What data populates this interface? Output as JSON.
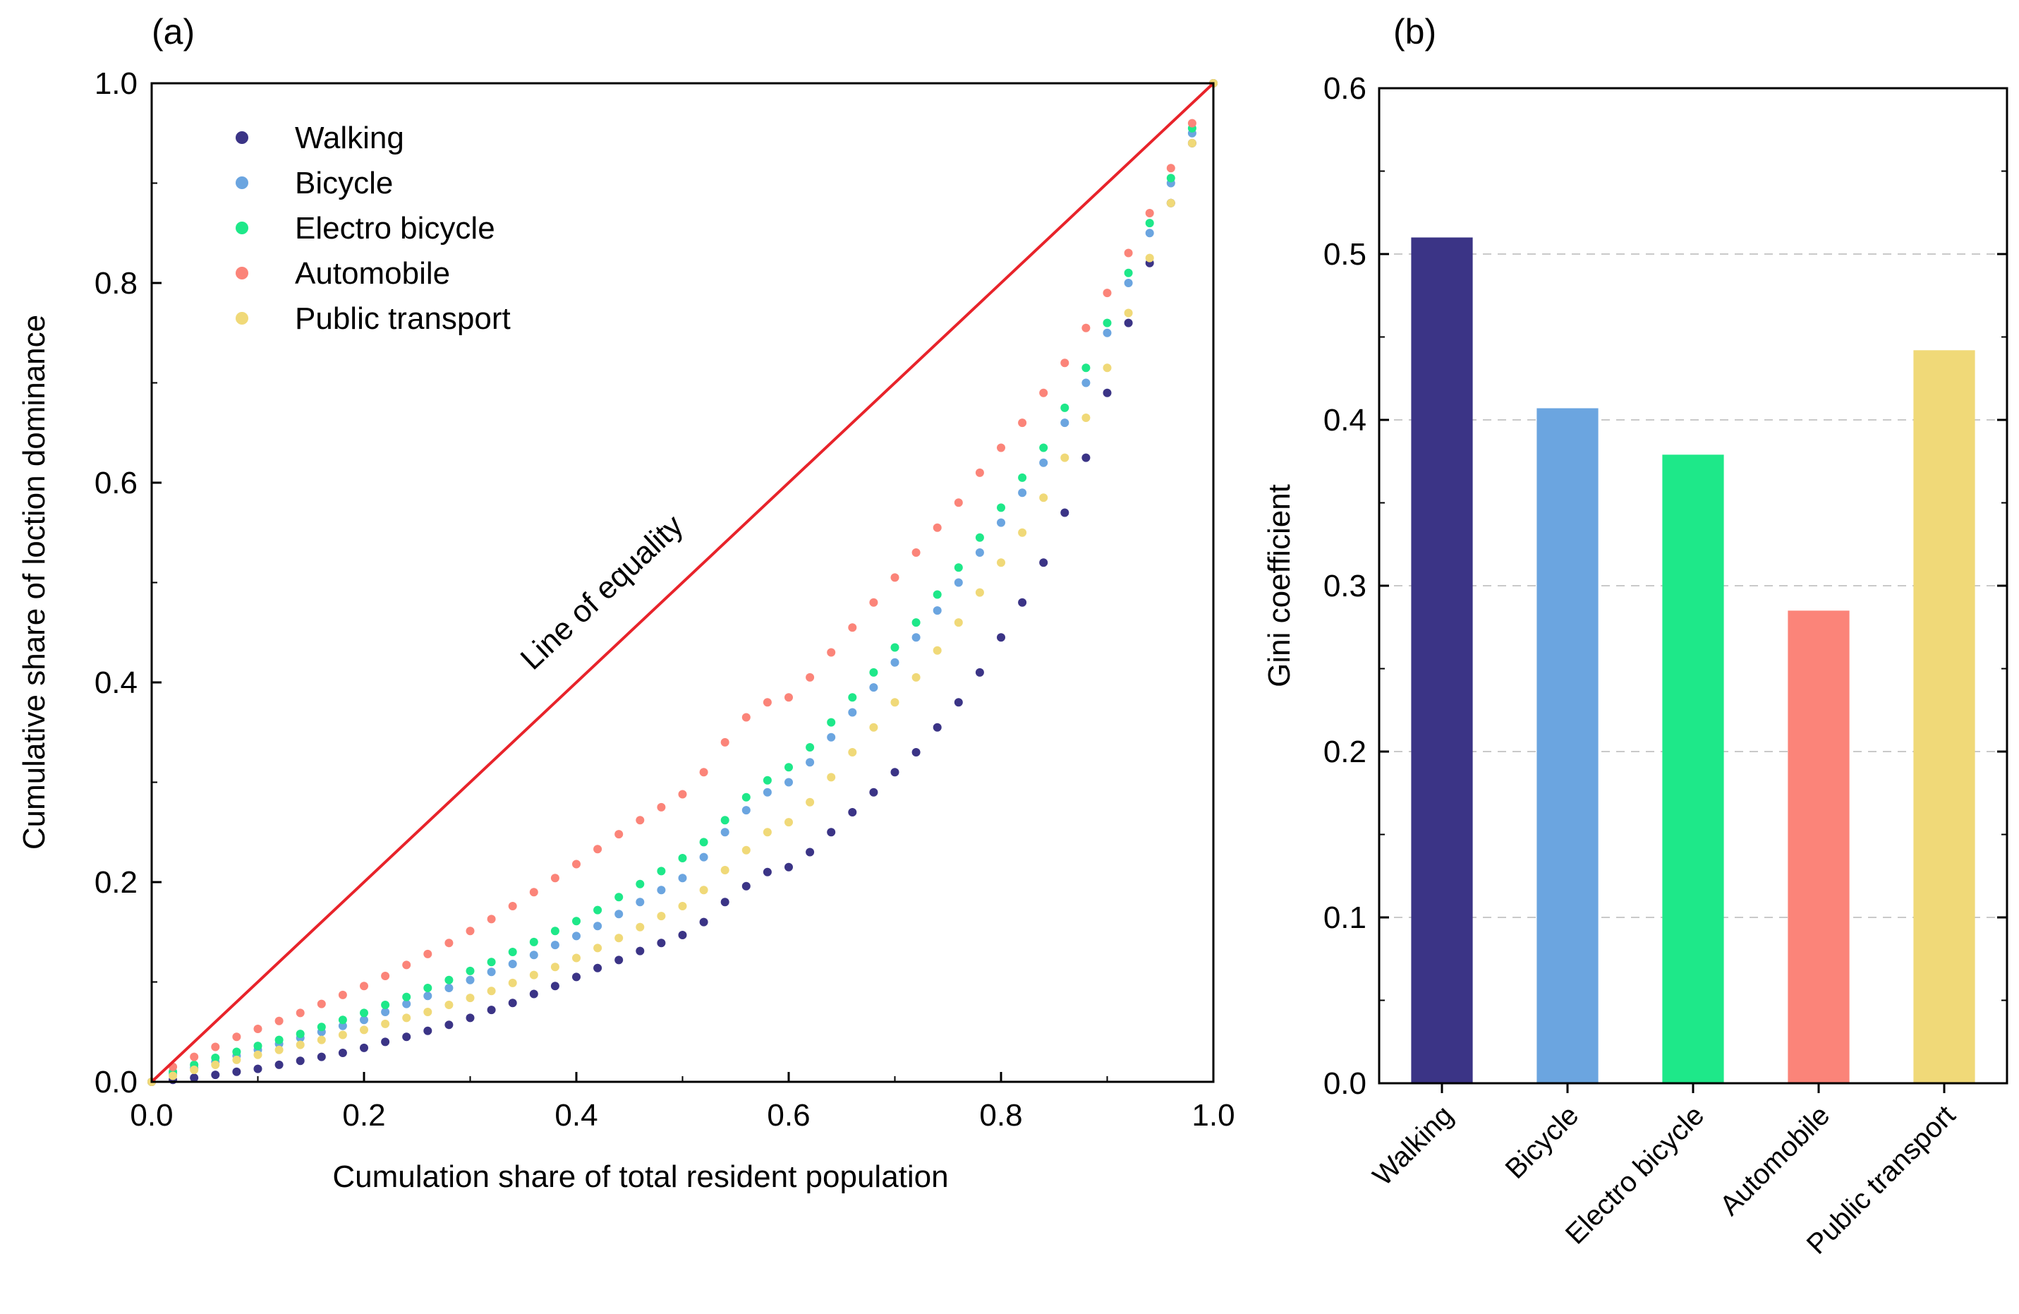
{
  "colors": {
    "walking": "#3b3486",
    "bicycle": "#6ba5e0",
    "electro_bicycle": "#1ee889",
    "automobile": "#fb8479",
    "public_transport": "#f0d978",
    "equality_line": "#e8232a"
  },
  "chart_data": [
    {
      "panel": "(a)",
      "type": "scatter",
      "title": "",
      "xlabel": "Cumulation share of total resident population",
      "ylabel": "Cumulative share of loction dominance",
      "xlim": [
        0,
        1
      ],
      "ylim": [
        0,
        1
      ],
      "xticks": [
        "0.0",
        "0.2",
        "0.4",
        "0.6",
        "0.8",
        "1.0"
      ],
      "yticks": [
        "0.0",
        "0.2",
        "0.4",
        "0.6",
        "0.8",
        "1.0"
      ],
      "legend_position": "top-left",
      "annotation": "Line of equality",
      "equality_line": [
        [
          0,
          0
        ],
        [
          1,
          1
        ]
      ],
      "series": [
        {
          "name": "Walking",
          "color_key": "walking",
          "x": [
            0,
            0.02,
            0.04,
            0.06,
            0.08,
            0.1,
            0.12,
            0.14,
            0.16,
            0.18,
            0.2,
            0.22,
            0.24,
            0.26,
            0.28,
            0.3,
            0.32,
            0.34,
            0.36,
            0.38,
            0.4,
            0.42,
            0.44,
            0.46,
            0.48,
            0.5,
            0.52,
            0.54,
            0.56,
            0.58,
            0.6,
            0.62,
            0.64,
            0.66,
            0.68,
            0.7,
            0.72,
            0.74,
            0.76,
            0.78,
            0.8,
            0.82,
            0.84,
            0.86,
            0.88,
            0.9,
            0.92,
            0.94,
            0.96,
            0.98,
            1.0
          ],
          "y": [
            0.0,
            0.002,
            0.004,
            0.007,
            0.01,
            0.013,
            0.017,
            0.021,
            0.025,
            0.029,
            0.034,
            0.04,
            0.045,
            0.051,
            0.057,
            0.064,
            0.072,
            0.079,
            0.088,
            0.096,
            0.105,
            0.114,
            0.122,
            0.131,
            0.139,
            0.147,
            0.16,
            0.18,
            0.196,
            0.21,
            0.215,
            0.23,
            0.25,
            0.27,
            0.29,
            0.31,
            0.33,
            0.355,
            0.38,
            0.41,
            0.445,
            0.48,
            0.52,
            0.57,
            0.625,
            0.69,
            0.76,
            0.82,
            0.88,
            0.94,
            1.0
          ]
        },
        {
          "name": "Bicycle",
          "color_key": "bicycle",
          "x": [
            0,
            0.02,
            0.04,
            0.06,
            0.08,
            0.1,
            0.12,
            0.14,
            0.16,
            0.18,
            0.2,
            0.22,
            0.24,
            0.26,
            0.28,
            0.3,
            0.32,
            0.34,
            0.36,
            0.38,
            0.4,
            0.42,
            0.44,
            0.46,
            0.48,
            0.5,
            0.52,
            0.54,
            0.56,
            0.58,
            0.6,
            0.62,
            0.64,
            0.66,
            0.68,
            0.7,
            0.72,
            0.74,
            0.76,
            0.78,
            0.8,
            0.82,
            0.84,
            0.86,
            0.88,
            0.9,
            0.92,
            0.94,
            0.96,
            0.98,
            1.0
          ],
          "y": [
            0.0,
            0.008,
            0.014,
            0.02,
            0.026,
            0.032,
            0.038,
            0.044,
            0.05,
            0.056,
            0.062,
            0.07,
            0.078,
            0.086,
            0.094,
            0.102,
            0.11,
            0.118,
            0.127,
            0.137,
            0.146,
            0.156,
            0.168,
            0.18,
            0.192,
            0.204,
            0.225,
            0.25,
            0.272,
            0.29,
            0.3,
            0.32,
            0.345,
            0.37,
            0.395,
            0.42,
            0.445,
            0.472,
            0.5,
            0.53,
            0.56,
            0.59,
            0.62,
            0.66,
            0.7,
            0.75,
            0.8,
            0.85,
            0.9,
            0.95,
            1.0
          ]
        },
        {
          "name": "Electro bicycle",
          "color_key": "electro_bicycle",
          "x": [
            0,
            0.02,
            0.04,
            0.06,
            0.08,
            0.1,
            0.12,
            0.14,
            0.16,
            0.18,
            0.2,
            0.22,
            0.24,
            0.26,
            0.28,
            0.3,
            0.32,
            0.34,
            0.36,
            0.38,
            0.4,
            0.42,
            0.44,
            0.46,
            0.48,
            0.5,
            0.52,
            0.54,
            0.56,
            0.58,
            0.6,
            0.62,
            0.64,
            0.66,
            0.68,
            0.7,
            0.72,
            0.74,
            0.76,
            0.78,
            0.8,
            0.82,
            0.84,
            0.86,
            0.88,
            0.9,
            0.92,
            0.94,
            0.96,
            0.98,
            1.0
          ],
          "y": [
            0.0,
            0.01,
            0.017,
            0.024,
            0.03,
            0.036,
            0.042,
            0.048,
            0.055,
            0.062,
            0.069,
            0.077,
            0.085,
            0.094,
            0.102,
            0.111,
            0.12,
            0.13,
            0.14,
            0.151,
            0.161,
            0.172,
            0.185,
            0.198,
            0.211,
            0.224,
            0.24,
            0.262,
            0.285,
            0.302,
            0.315,
            0.335,
            0.36,
            0.385,
            0.41,
            0.435,
            0.46,
            0.488,
            0.515,
            0.545,
            0.575,
            0.605,
            0.635,
            0.675,
            0.715,
            0.76,
            0.81,
            0.86,
            0.905,
            0.955,
            1.0
          ]
        },
        {
          "name": "Automobile",
          "color_key": "automobile",
          "x": [
            0,
            0.02,
            0.04,
            0.06,
            0.08,
            0.1,
            0.12,
            0.14,
            0.16,
            0.18,
            0.2,
            0.22,
            0.24,
            0.26,
            0.28,
            0.3,
            0.32,
            0.34,
            0.36,
            0.38,
            0.4,
            0.42,
            0.44,
            0.46,
            0.48,
            0.5,
            0.52,
            0.54,
            0.56,
            0.58,
            0.6,
            0.62,
            0.64,
            0.66,
            0.68,
            0.7,
            0.72,
            0.74,
            0.76,
            0.78,
            0.8,
            0.82,
            0.84,
            0.86,
            0.88,
            0.9,
            0.92,
            0.94,
            0.96,
            0.98,
            1.0
          ],
          "y": [
            0.0,
            0.015,
            0.025,
            0.035,
            0.045,
            0.053,
            0.061,
            0.069,
            0.078,
            0.087,
            0.096,
            0.106,
            0.117,
            0.128,
            0.139,
            0.151,
            0.163,
            0.176,
            0.19,
            0.204,
            0.218,
            0.233,
            0.248,
            0.262,
            0.275,
            0.288,
            0.31,
            0.34,
            0.365,
            0.38,
            0.385,
            0.405,
            0.43,
            0.455,
            0.48,
            0.505,
            0.53,
            0.555,
            0.58,
            0.61,
            0.635,
            0.66,
            0.69,
            0.72,
            0.755,
            0.79,
            0.83,
            0.87,
            0.915,
            0.96,
            1.0
          ]
        },
        {
          "name": "Public transport",
          "color_key": "public_transport",
          "x": [
            0,
            0.02,
            0.04,
            0.06,
            0.08,
            0.1,
            0.12,
            0.14,
            0.16,
            0.18,
            0.2,
            0.22,
            0.24,
            0.26,
            0.28,
            0.3,
            0.32,
            0.34,
            0.36,
            0.38,
            0.4,
            0.42,
            0.44,
            0.46,
            0.48,
            0.5,
            0.52,
            0.54,
            0.56,
            0.58,
            0.6,
            0.62,
            0.64,
            0.66,
            0.68,
            0.7,
            0.72,
            0.74,
            0.76,
            0.78,
            0.8,
            0.82,
            0.84,
            0.86,
            0.88,
            0.9,
            0.92,
            0.94,
            0.96,
            0.98,
            1.0
          ],
          "y": [
            0.0,
            0.006,
            0.012,
            0.017,
            0.022,
            0.027,
            0.032,
            0.037,
            0.042,
            0.047,
            0.052,
            0.058,
            0.064,
            0.07,
            0.077,
            0.084,
            0.091,
            0.099,
            0.107,
            0.115,
            0.124,
            0.134,
            0.144,
            0.155,
            0.166,
            0.176,
            0.192,
            0.212,
            0.232,
            0.25,
            0.26,
            0.28,
            0.305,
            0.33,
            0.355,
            0.38,
            0.405,
            0.432,
            0.46,
            0.49,
            0.52,
            0.55,
            0.585,
            0.625,
            0.665,
            0.715,
            0.77,
            0.825,
            0.88,
            0.94,
            1.0
          ]
        }
      ]
    },
    {
      "panel": "(b)",
      "type": "bar",
      "title": "",
      "xlabel": "",
      "ylabel": "Gini coefficient",
      "ylim": [
        0,
        0.6
      ],
      "yticks": [
        "0.0",
        "0.1",
        "0.2",
        "0.3",
        "0.4",
        "0.5",
        "0.6"
      ],
      "grid": "horizontal dashed",
      "categories": [
        "Walking",
        "Bicycle",
        "Electro bicycle",
        "Automobile",
        "Public transport"
      ],
      "values": [
        0.51,
        0.407,
        0.379,
        0.285,
        0.442
      ],
      "color_keys": [
        "walking",
        "bicycle",
        "electro_bicycle",
        "automobile",
        "public_transport"
      ]
    }
  ]
}
